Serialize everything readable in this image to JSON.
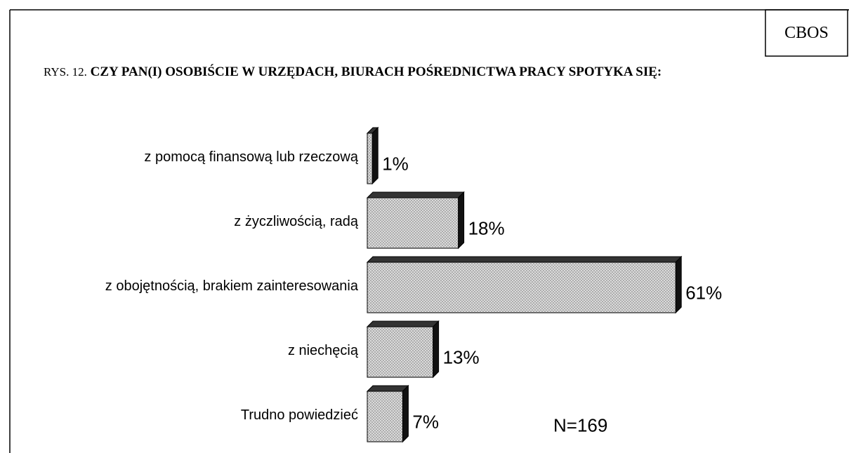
{
  "chart_data": {
    "type": "bar",
    "source": "CBOS",
    "figure_label": "RYS. 12.",
    "title": "CZY PAN(I) OSOBIŚCIE W URZĘDACH, BIURACH POŚREDNICTWA PRACY SPOTYKA SIĘ:",
    "categories": [
      "z pomocą finansową lub rzeczową",
      "z życzliwością, radą",
      "z obojętnością, brakiem zainteresowania",
      "z niechęcią",
      "Trudno powiedzieć"
    ],
    "values": [
      1,
      18,
      61,
      13,
      7
    ],
    "value_labels": [
      "1%",
      "18%",
      "61%",
      "13%",
      "7%"
    ],
    "annotation": "N=169"
  }
}
